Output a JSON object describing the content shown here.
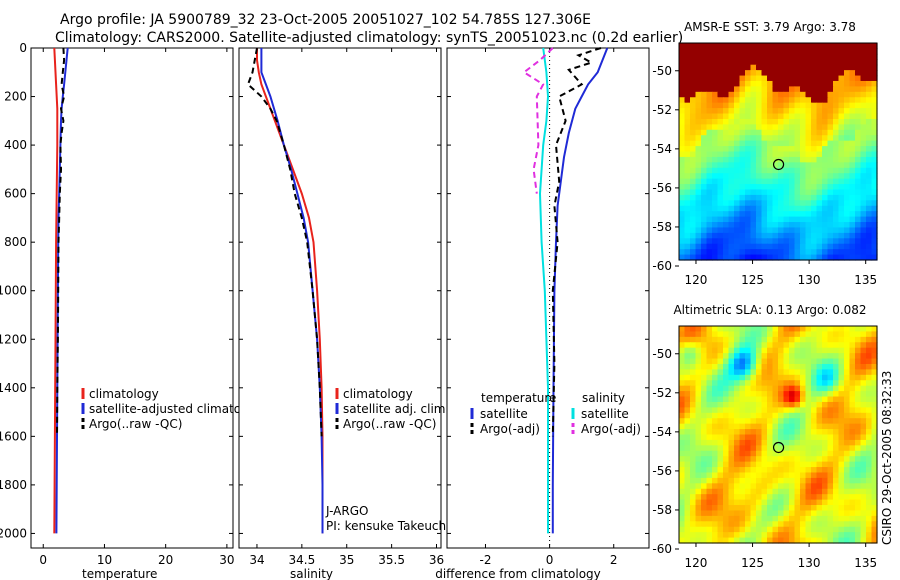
{
  "title": {
    "line1": "Argo profile: JA 5900789_32 23-Oct-2005 20051027_102 54.785S 127.306E",
    "line2": "Climatology: CARS2000. Satellite-adjusted climatology: synTS_20051023.nc (0.2d earlier)"
  },
  "colors": {
    "climatology": "#e8231c",
    "satellite": "#1f2ad6",
    "argo": "#000000",
    "temp_diff": "#00e0e0",
    "argo_adj_sal": "#e030e0"
  },
  "side_text": "CSIRO 29-Oct-2005 08:32:33",
  "chart_data": [
    {
      "type": "line",
      "id": "temperature",
      "xlabel": "temperature",
      "ylabel": "",
      "xlim": [
        -2,
        31
      ],
      "ylim": [
        2060,
        0
      ],
      "xticks": [
        0,
        10,
        20,
        30
      ],
      "yticks": [
        0,
        200,
        400,
        600,
        800,
        1000,
        1200,
        1400,
        1600,
        1800,
        2000
      ],
      "legend": [
        "climatology",
        "satellite-adjusted climatology",
        "Argo(..raw -QC)"
      ],
      "series": [
        {
          "name": "climatology",
          "color": "climatology",
          "dash": "",
          "x": [
            1.8,
            1.9,
            2.0,
            2.1,
            2.2,
            2.3,
            2.3,
            2.3,
            2.25,
            2.2,
            2.15,
            2.1,
            2.05,
            2.0,
            1.95,
            1.9,
            1.85,
            1.8
          ],
          "y": [
            0,
            50,
            100,
            150,
            200,
            250,
            300,
            400,
            500,
            600,
            700,
            800,
            1000,
            1200,
            1400,
            1600,
            1800,
            2000
          ]
        },
        {
          "name": "satellite",
          "color": "satellite",
          "dash": "",
          "x": [
            4.0,
            3.8,
            3.6,
            3.4,
            3.2,
            3.0,
            2.9,
            2.8,
            2.7,
            2.6,
            2.5,
            2.45,
            2.4,
            2.35,
            2.3,
            2.25,
            2.2,
            2.15
          ],
          "y": [
            0,
            50,
            100,
            150,
            200,
            250,
            300,
            400,
            500,
            600,
            700,
            800,
            1000,
            1200,
            1400,
            1600,
            1800,
            2000
          ]
        },
        {
          "name": "argo",
          "color": "argo",
          "dash": "6,4",
          "x": [
            3.3,
            3.4,
            3.2,
            3.0,
            3.4,
            2.9,
            3.3,
            3.0,
            2.8,
            2.9,
            2.7,
            2.6,
            2.5,
            2.45,
            2.4,
            2.3,
            2.25
          ],
          "y": [
            0,
            50,
            100,
            150,
            200,
            250,
            300,
            350,
            400,
            500,
            600,
            700,
            800,
            1000,
            1200,
            1400,
            1600
          ]
        }
      ]
    },
    {
      "type": "line",
      "id": "salinity",
      "xlabel": "salinity",
      "xlim": [
        33.8,
        36.05
      ],
      "ylim": [
        2060,
        0
      ],
      "xticks": [
        34,
        34.5,
        35,
        35.5,
        36
      ],
      "xticklabels": [
        "34",
        "34.5",
        "35",
        "35.5",
        "36"
      ],
      "legend": [
        "climatology",
        "satellite adj. clim.",
        "Argo(..raw -QC)"
      ],
      "annotations": [
        "J-ARGO",
        "PI: kensuke Takeuchi"
      ],
      "series": [
        {
          "name": "climatology",
          "color": "climatology",
          "dash": "",
          "x": [
            34.0,
            34.0,
            34.02,
            34.05,
            34.1,
            34.2,
            34.3,
            34.4,
            34.5,
            34.58,
            34.63,
            34.67,
            34.7,
            34.72,
            34.73,
            34.73,
            34.73
          ],
          "y": [
            0,
            50,
            100,
            150,
            200,
            300,
            400,
            500,
            600,
            700,
            800,
            1000,
            1200,
            1400,
            1600,
            1800,
            2000
          ]
        },
        {
          "name": "satellite",
          "color": "satellite",
          "dash": "",
          "x": [
            34.05,
            34.05,
            34.05,
            34.1,
            34.15,
            34.23,
            34.3,
            34.38,
            34.45,
            34.52,
            34.57,
            34.62,
            34.67,
            34.7,
            34.72,
            34.73,
            34.73
          ],
          "y": [
            0,
            50,
            100,
            150,
            200,
            300,
            400,
            500,
            600,
            700,
            800,
            1000,
            1200,
            1400,
            1600,
            1800,
            2000
          ]
        },
        {
          "name": "argo",
          "color": "argo",
          "dash": "6,4",
          "x": [
            34.0,
            33.95,
            33.9,
            34.05,
            34.15,
            34.22,
            34.3,
            34.37,
            34.42,
            34.5,
            34.56,
            34.62,
            34.67,
            34.7,
            34.72
          ],
          "y": [
            0,
            100,
            150,
            200,
            250,
            300,
            400,
            500,
            600,
            700,
            800,
            1000,
            1200,
            1400,
            1600
          ]
        }
      ]
    },
    {
      "type": "line",
      "id": "difference",
      "xlabel": "difference from climatology",
      "xlim": [
        -3.2,
        3.1
      ],
      "ylim": [
        2060,
        0
      ],
      "xticks": [
        -2,
        0,
        2
      ],
      "legend_left_title": "temperature",
      "legend_right_title": "salinity",
      "legend": [
        "satellite",
        "Argo(-adj)",
        "satellite",
        "Argo(-adj)"
      ],
      "series": [
        {
          "name": "temp satellite",
          "color": "satellite",
          "dash": "",
          "x": [
            1.8,
            1.5,
            1.2,
            1.0,
            0.8,
            0.6,
            0.45,
            0.35,
            0.25,
            0.2,
            0.15,
            0.12,
            0.1,
            0.1
          ],
          "y": [
            0,
            100,
            150,
            200,
            250,
            350,
            450,
            550,
            650,
            800,
            1000,
            1400,
            1800,
            2000
          ]
        },
        {
          "name": "temp argo",
          "color": "argo",
          "dash": "6,4",
          "x": [
            1.6,
            0.9,
            1.3,
            0.6,
            1.0,
            0.3,
            0.5,
            0.2,
            0.3,
            0.15,
            0.25,
            0.1,
            0.15,
            0.1
          ],
          "y": [
            0,
            30,
            60,
            90,
            150,
            200,
            300,
            400,
            550,
            650,
            800,
            1000,
            1300,
            1600
          ]
        },
        {
          "name": "sal satellite",
          "color": "temp_diff",
          "dash": "",
          "x": [
            -0.2,
            -0.1,
            -0.05,
            -0.1,
            -0.2,
            -0.3,
            -0.25,
            -0.15,
            -0.1,
            -0.05,
            -0.05,
            -0.05
          ],
          "y": [
            0,
            100,
            200,
            300,
            400,
            600,
            800,
            1000,
            1200,
            1400,
            1800,
            2000
          ]
        },
        {
          "name": "sal argo",
          "color": "argo_adj_sal",
          "dash": "6,4",
          "x": [
            0.1,
            -0.3,
            -0.8,
            -0.2,
            -0.4,
            -0.35,
            -0.5,
            -0.4
          ],
          "y": [
            0,
            50,
            100,
            150,
            200,
            400,
            500,
            600
          ]
        }
      ]
    }
  ],
  "maps": [
    {
      "title": "AMSR-E SST: 3.79 Argo: 3.78",
      "xticks": [
        "120",
        "125",
        "130",
        "135"
      ],
      "yticks": [
        "-50",
        "-52",
        "-54",
        "-56",
        "-58",
        "-60"
      ],
      "kind": "sst",
      "marker_lon": 127.3,
      "marker_lat": -54.8
    },
    {
      "title": "Altimetric SLA: 0.13 Argo: 0.082",
      "xticks": [
        "120",
        "125",
        "130",
        "135"
      ],
      "yticks": [
        "-50",
        "-52",
        "-54",
        "-56",
        "-58",
        "-60"
      ],
      "kind": "sla",
      "marker_lon": 127.3,
      "marker_lat": -54.8
    }
  ]
}
